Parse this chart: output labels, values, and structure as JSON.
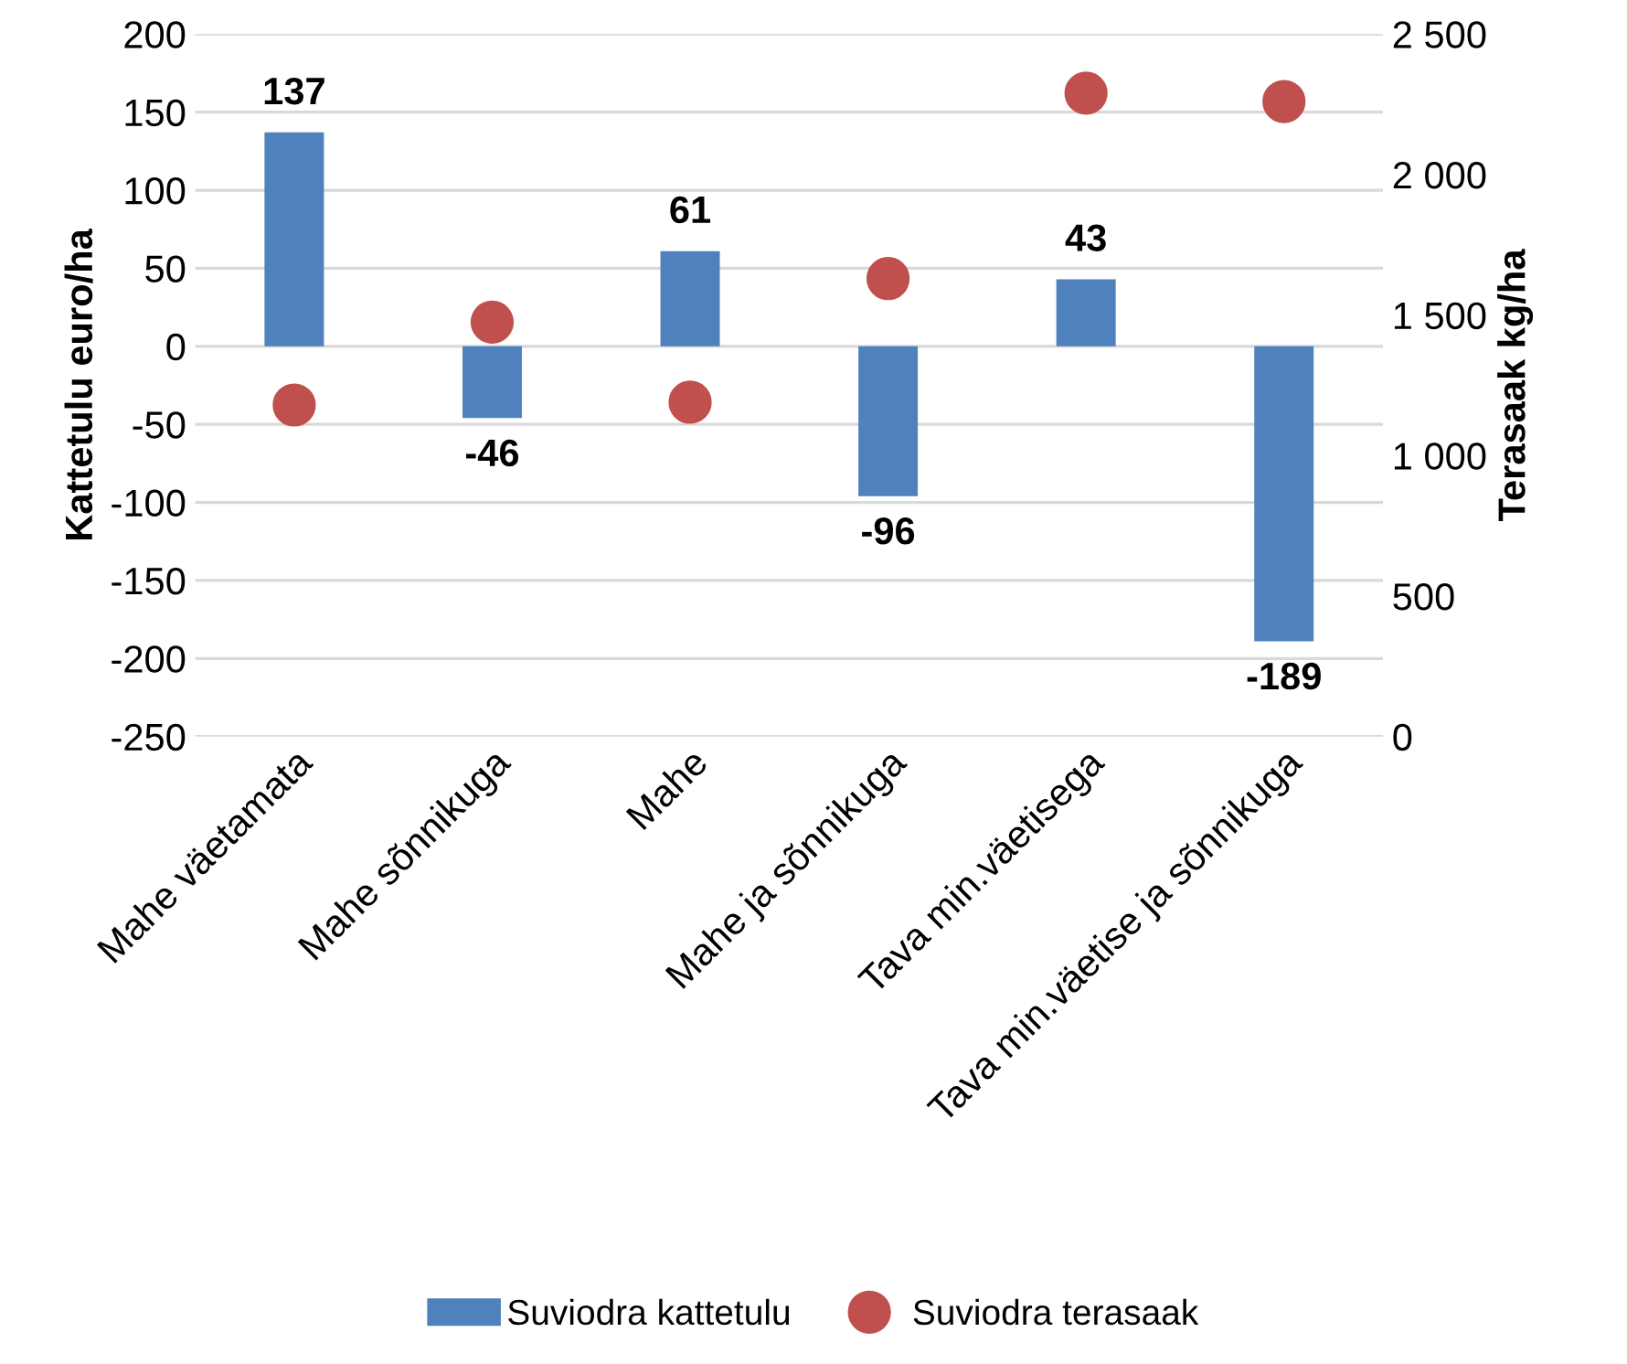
{
  "chart_data": {
    "type": "bar",
    "categories": [
      "Mahe väetamata",
      "Mahe sõnnikuga",
      "Mahe",
      "Mahe ja sõnnikuga",
      "Tava min.väetisega",
      "Tava min.väetise ja sõnnikuga"
    ],
    "series": [
      {
        "name": "Suviodra kattetulu",
        "color": "#4f81bd",
        "values": [
          137,
          -46,
          61,
          -96,
          43,
          -189
        ],
        "value_labels": [
          "137",
          "-46",
          "61",
          "-96",
          "43",
          "-189"
        ]
      },
      {
        "name": "Suviodra terasaak",
        "type": "scatter",
        "axis": "y2",
        "color": "#c0504d",
        "marker": "circle",
        "values": [
          1180,
          1475,
          1190,
          1630,
          2290,
          2260
        ]
      }
    ],
    "ylabel": "Kattetulu euro/ha",
    "y2label": "Terasaak kg/ha",
    "ylim": [
      -250,
      200
    ],
    "yticks": [
      -250,
      -200,
      -150,
      -100,
      -50,
      0,
      50,
      100,
      150,
      200
    ],
    "y2lim": [
      0,
      2500
    ],
    "y2ticks": [
      0,
      500,
      {
        "value": 1000,
        "label": "1 000"
      },
      {
        "value": 1500,
        "label": "1 500"
      },
      {
        "value": 2000,
        "label": "2 000"
      },
      {
        "value": 2500,
        "label": "2 500"
      }
    ],
    "grid": "y",
    "legend": "bottom"
  }
}
